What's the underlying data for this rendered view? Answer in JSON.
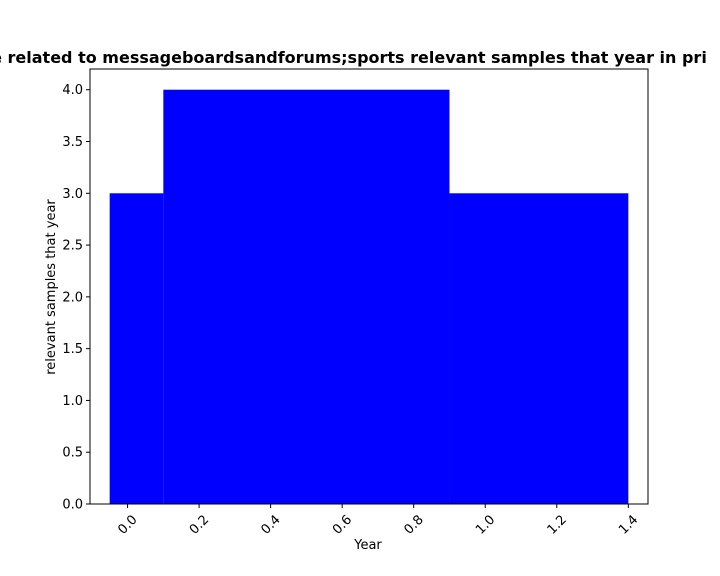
{
  "chart_data": {
    "type": "bar",
    "title": "re related to messageboardsandforums;sports relevant samples that year in pri",
    "xlabel": "Year",
    "ylabel": "relevant samples that year",
    "bars": [
      {
        "x_start": -0.05,
        "x_end": 0.1,
        "value": 3.0
      },
      {
        "x_start": 0.1,
        "x_end": 0.9,
        "value": 4.0
      },
      {
        "x_start": 0.9,
        "x_end": 1.4,
        "value": 3.0
      }
    ],
    "xlim": [
      -0.105,
      1.455
    ],
    "ylim": [
      0,
      4.2
    ],
    "xticks": [
      "0.0",
      "0.2",
      "0.4",
      "0.6",
      "0.8",
      "1.0",
      "1.2",
      "1.4"
    ],
    "xtick_values": [
      0.0,
      0.2,
      0.4,
      0.6,
      0.8,
      1.0,
      1.2,
      1.4
    ],
    "yticks": [
      "0.0",
      "0.5",
      "1.0",
      "1.5",
      "2.0",
      "2.5",
      "3.0",
      "3.5",
      "4.0"
    ],
    "ytick_values": [
      0.0,
      0.5,
      1.0,
      1.5,
      2.0,
      2.5,
      3.0,
      3.5,
      4.0
    ],
    "bar_color": "#0000ff",
    "grid": false,
    "legend": "none"
  }
}
